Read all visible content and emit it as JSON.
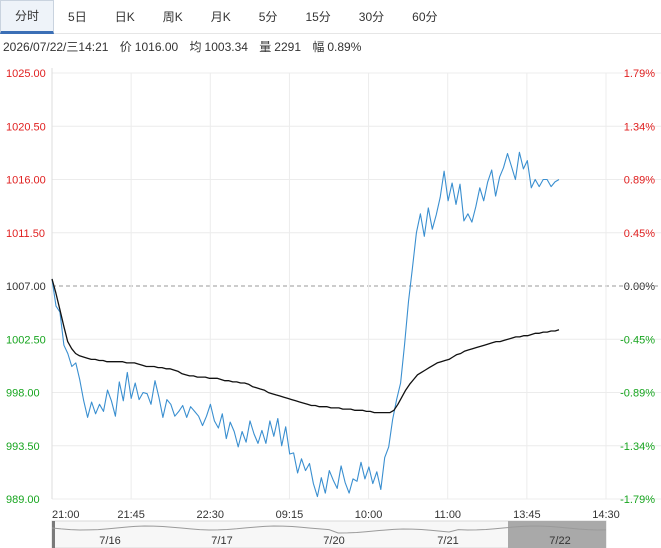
{
  "tabs": [
    {
      "label": "分时",
      "active": true
    },
    {
      "label": "5日"
    },
    {
      "label": "日K"
    },
    {
      "label": "周K"
    },
    {
      "label": "月K"
    },
    {
      "label": "5分"
    },
    {
      "label": "15分"
    },
    {
      "label": "30分"
    },
    {
      "label": "60分"
    }
  ],
  "info": {
    "datetime": "2026/07/22/三14:21",
    "price_label": "价",
    "price": "1016.00",
    "avg_label": "均",
    "avg": "1003.34",
    "volume_label": "量",
    "volume": "2291",
    "range_label": "幅",
    "range": "0.89%"
  },
  "colors": {
    "up": "#e02020",
    "down": "#17a51f",
    "price_line": "#3a8fd0",
    "avg_line": "#111111",
    "ref_line": "#9a9a9a"
  },
  "navigator": {
    "labels": [
      "7/16",
      "7/17",
      "7/20",
      "7/21",
      "7/22"
    ],
    "selected": "7/22"
  },
  "chart_data": {
    "type": "line",
    "title": "",
    "xlabel": "",
    "ylabel": "",
    "ylim": [
      989.0,
      1025.0
    ],
    "y_ticks_left": [
      "1025.00",
      "1020.50",
      "1016.00",
      "1011.50",
      "1007.00",
      "1002.50",
      "998.00",
      "993.50",
      "989.00"
    ],
    "y_ticks_right": [
      "1.79%",
      "1.34%",
      "0.89%",
      "0.45%",
      "0.00%",
      "-0.45%",
      "-0.89%",
      "-1.34%",
      "-1.79%"
    ],
    "reference_value": 1007.0,
    "x_ticks": [
      "21:00",
      "21:45",
      "22:30",
      "09:15",
      "10:00",
      "11:00",
      "13:45",
      "14:30"
    ],
    "grid": true,
    "series": [
      {
        "name": "价",
        "values": [
          1007.6,
          1005.3,
          1004.8,
          1002.0,
          1001.3,
          1000.2,
          1000.5,
          999.1,
          997.3,
          995.9,
          997.2,
          996.2,
          997.0,
          996.4,
          998.2,
          997.3,
          996.0,
          998.9,
          997.3,
          999.7,
          997.5,
          998.8,
          997.4,
          998.0,
          997.9,
          997.0,
          999.0,
          997.6,
          995.9,
          997.4,
          997.0,
          996.0,
          996.4,
          996.9,
          995.9,
          996.8,
          996.4,
          996.0,
          995.2,
          996.0,
          997.0,
          995.6,
          995.0,
          996.2,
          994.1,
          995.5,
          994.7,
          993.4,
          994.7,
          993.8,
          995.6,
          994.5,
          993.7,
          994.8,
          993.7,
          995.6,
          994.3,
          995.8,
          993.5,
          995.1,
          992.8,
          992.9,
          991.2,
          992.4,
          991.4,
          992.0,
          990.3,
          989.2,
          990.8,
          989.5,
          991.4,
          990.6,
          989.9,
          991.8,
          990.4,
          989.5,
          990.7,
          990.5,
          992.1,
          990.7,
          991.7,
          990.3,
          991.3,
          989.8,
          992.5,
          993.4,
          995.7,
          997.4,
          998.8,
          1002.0,
          1005.7,
          1008.5,
          1011.5,
          1013.1,
          1011.2,
          1013.6,
          1011.8,
          1013.0,
          1014.5,
          1016.7,
          1014.2,
          1015.7,
          1013.9,
          1015.6,
          1012.5,
          1013.1,
          1012.4,
          1013.7,
          1015.3,
          1014.2,
          1015.8,
          1016.8,
          1014.6,
          1016.2,
          1017.0,
          1018.2,
          1017.1,
          1016.0,
          1018.3,
          1016.9,
          1017.6,
          1015.3,
          1016.0,
          1015.4,
          1016.0,
          1016.0,
          1015.4,
          1015.8,
          1016.0
        ]
      },
      {
        "name": "均",
        "values": [
          1007.6,
          1006.4,
          1005.0,
          1003.6,
          1002.3,
          1001.7,
          1001.3,
          1001.1,
          1001.0,
          1000.9,
          1000.8,
          1000.8,
          1000.7,
          1000.7,
          1000.6,
          1000.6,
          1000.6,
          1000.6,
          1000.6,
          1000.5,
          1000.5,
          1000.5,
          1000.4,
          1000.3,
          1000.2,
          1000.2,
          1000.2,
          1000.1,
          1000.1,
          1000.0,
          1000.0,
          999.9,
          999.8,
          999.6,
          999.5,
          999.4,
          999.4,
          999.3,
          999.3,
          999.3,
          999.2,
          999.2,
          999.2,
          999.1,
          999.0,
          999.0,
          998.9,
          998.9,
          998.8,
          998.8,
          998.7,
          998.5,
          998.4,
          998.3,
          998.2,
          998.0,
          997.9,
          997.8,
          997.7,
          997.6,
          997.5,
          997.4,
          997.3,
          997.2,
          997.1,
          997.0,
          996.9,
          996.9,
          996.8,
          996.8,
          996.8,
          996.7,
          996.7,
          996.7,
          996.6,
          996.6,
          996.6,
          996.5,
          996.5,
          996.5,
          996.4,
          996.4,
          996.3,
          996.3,
          996.3,
          996.3,
          996.3,
          996.5,
          997.0,
          997.6,
          998.2,
          998.7,
          999.1,
          999.5,
          999.7,
          999.9,
          1000.1,
          1000.3,
          1000.5,
          1000.6,
          1000.7,
          1000.8,
          1001.0,
          1001.2,
          1001.3,
          1001.5,
          1001.6,
          1001.7,
          1001.8,
          1001.9,
          1002.0,
          1002.1,
          1002.2,
          1002.3,
          1002.3,
          1002.4,
          1002.5,
          1002.6,
          1002.7,
          1002.7,
          1002.8,
          1002.8,
          1002.9,
          1003.0,
          1003.0,
          1003.1,
          1003.1,
          1003.2,
          1003.2,
          1003.3
        ]
      }
    ]
  }
}
